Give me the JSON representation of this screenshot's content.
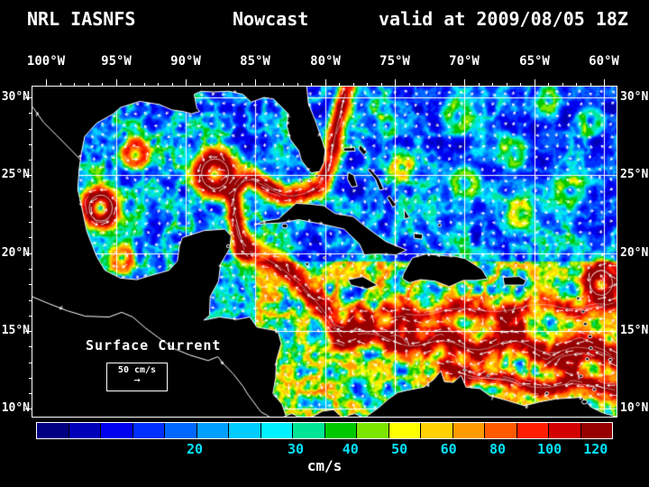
{
  "title": {
    "model": "NRL IASNFS",
    "product": "Nowcast",
    "valid": "valid at 2009/08/05 18Z"
  },
  "map": {
    "lon_labels": [
      "100°W",
      "95°W",
      "90°W",
      "85°W",
      "80°W",
      "75°W",
      "70°W",
      "65°W",
      "60°W"
    ],
    "lon_values": [
      -100,
      -95,
      -90,
      -85,
      -80,
      -75,
      -70,
      -65,
      -60
    ],
    "lat_labels": [
      "30°N",
      "25°N",
      "20°N",
      "15°N",
      "10°N"
    ],
    "lat_values": [
      30,
      25,
      20,
      15,
      10
    ],
    "lon_range": [
      -101,
      -59.1
    ],
    "lat_range": [
      30.7,
      9.5
    ],
    "annotation": "Surface Current",
    "scale": {
      "label": "50 cm/s",
      "arrow": "→"
    },
    "colors": {
      "land": "#000000",
      "coastline": "#ffffff",
      "grid": "#ffffff",
      "arrows": "#ffffff",
      "background": "#000000"
    }
  },
  "colorbar": {
    "units": "cm/s",
    "tick_color": "#00e4ff",
    "segment_colors": [
      "#000082",
      "#0000b9",
      "#0000ef",
      "#0030ff",
      "#0068ff",
      "#00a0ff",
      "#00ccff",
      "#00f2ff",
      "#00e696",
      "#00c800",
      "#7ce600",
      "#ffff00",
      "#ffd200",
      "#ff9b00",
      "#ff5a00",
      "#ff1e00",
      "#d20000",
      "#960000"
    ],
    "ticks": [
      {
        "label": "20",
        "pos": 27.5
      },
      {
        "label": "30",
        "pos": 45
      },
      {
        "label": "40",
        "pos": 54.5
      },
      {
        "label": "50",
        "pos": 63
      },
      {
        "label": "60",
        "pos": 71.5
      },
      {
        "label": "80",
        "pos": 80
      },
      {
        "label": "100",
        "pos": 89
      },
      {
        "label": "120",
        "pos": 97
      }
    ],
    "value_anchors": [
      [
        0,
        0
      ],
      [
        20,
        0.275
      ],
      [
        30,
        0.45
      ],
      [
        40,
        0.545
      ],
      [
        50,
        0.63
      ],
      [
        60,
        0.715
      ],
      [
        80,
        0.8
      ],
      [
        100,
        0.89
      ],
      [
        120,
        0.97
      ],
      [
        132,
        1
      ]
    ]
  }
}
